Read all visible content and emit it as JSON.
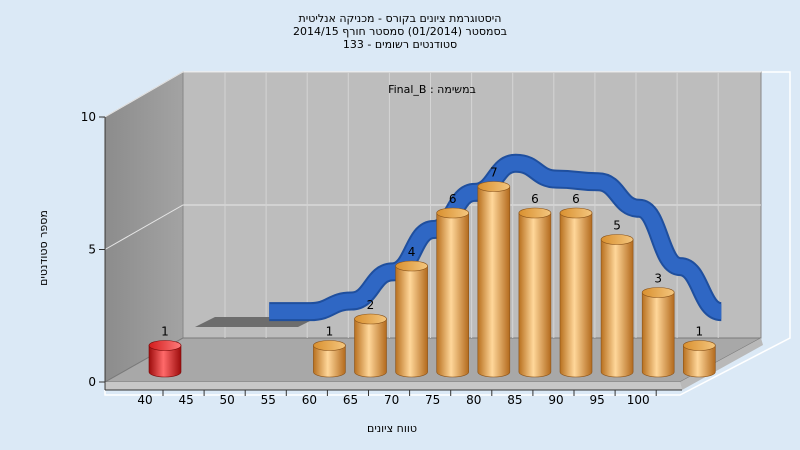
{
  "chart_data": {
    "type": "bar",
    "title_lines": [
      "היסטוגרמת ציונים בקורס - מכניקה אנליטית",
      "בסמסטר  (01/2014)  סמסטר חורף 2014/15",
      "סטודנטים רשומים - 133"
    ],
    "series_tag": "במשימה : Final_B",
    "xlabel": "טווח ציונים",
    "ylabel": "מספר סטודנטים",
    "x_ticks": [
      "40",
      "45",
      "50",
      "55",
      "60",
      "65",
      "70",
      "75",
      "80",
      "85",
      "90",
      "95",
      "100"
    ],
    "y_ticks": [
      "0",
      "5",
      "10"
    ],
    "ylim": [
      0,
      10
    ],
    "bars": [
      {
        "x": 40,
        "value": 1,
        "highlight": true
      },
      {
        "x": 45,
        "value": 0,
        "highlight": false
      },
      {
        "x": 50,
        "value": 0,
        "highlight": false
      },
      {
        "x": 55,
        "value": 0,
        "highlight": false
      },
      {
        "x": 60,
        "value": 1,
        "highlight": false
      },
      {
        "x": 65,
        "value": 2,
        "highlight": false
      },
      {
        "x": 70,
        "value": 4,
        "highlight": false
      },
      {
        "x": 75,
        "value": 6,
        "highlight": false
      },
      {
        "x": 80,
        "value": 7,
        "highlight": false
      },
      {
        "x": 85,
        "value": 6,
        "highlight": false
      },
      {
        "x": 90,
        "value": 6,
        "highlight": false
      },
      {
        "x": 95,
        "value": 5,
        "highlight": false
      },
      {
        "x": 100,
        "value": 3,
        "highlight": false
      },
      {
        "x": 105,
        "value": 1,
        "highlight": false
      }
    ],
    "trend_curve": [
      {
        "x": 50,
        "y": 1.9
      },
      {
        "x": 55,
        "y": 1.9
      },
      {
        "x": 60,
        "y": 2.3
      },
      {
        "x": 65,
        "y": 3.4
      },
      {
        "x": 70,
        "y": 5.0
      },
      {
        "x": 75,
        "y": 6.4
      },
      {
        "x": 80,
        "y": 7.5
      },
      {
        "x": 85,
        "y": 6.9
      },
      {
        "x": 90,
        "y": 6.8
      },
      {
        "x": 95,
        "y": 5.8
      },
      {
        "x": 100,
        "y": 3.6
      },
      {
        "x": 105,
        "y": 1.9
      }
    ],
    "colors": {
      "background": "#dbe9f6",
      "bar": "#e9a24b",
      "bar_highlight": "#d61a1a",
      "trend": "#2f67c4",
      "wall": "#bcbcbc",
      "floor": "#a5a5a5"
    }
  }
}
